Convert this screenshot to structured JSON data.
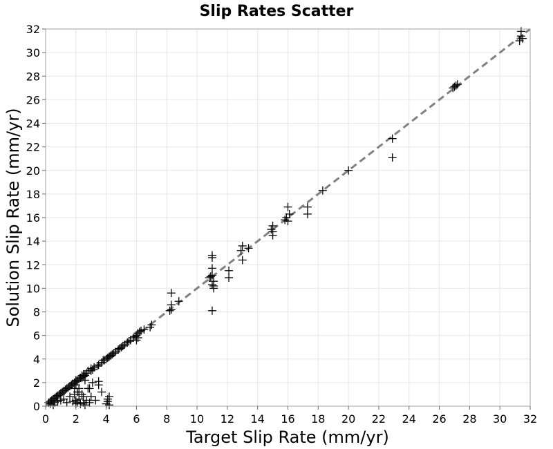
{
  "chart_data": {
    "type": "scatter",
    "title": "Slip Rates Scatter",
    "xlabel": "Target Slip Rate (mm/yr)",
    "ylabel": "Solution Slip Rate (mm/yr)",
    "xlim": [
      0,
      32
    ],
    "ylim": [
      0,
      32
    ],
    "xticks": [
      0,
      2,
      4,
      6,
      8,
      10,
      12,
      14,
      16,
      18,
      20,
      22,
      24,
      26,
      28,
      30,
      32
    ],
    "yticks": [
      0,
      2,
      4,
      6,
      8,
      10,
      12,
      14,
      16,
      18,
      20,
      22,
      24,
      26,
      28,
      30,
      32
    ],
    "grid": true,
    "marker": "plus",
    "colors": {
      "marker": "#000000",
      "reference_line": "#808080",
      "grid": "#e6e6e6"
    },
    "reference_line": {
      "style": "dashed",
      "x": [
        0,
        32
      ],
      "y": [
        0,
        32
      ]
    },
    "series": [
      {
        "x": [
          0.2,
          0.3,
          0.4,
          0.5,
          0.5,
          0.6,
          0.7,
          0.8,
          0.9,
          1.0,
          1.0,
          1.1,
          1.2,
          1.3,
          1.4,
          1.5,
          1.6,
          1.7,
          1.8,
          1.9,
          2.0,
          2.0,
          2.1,
          2.2,
          2.3,
          2.4,
          2.4,
          2.5,
          2.5,
          2.6,
          2.7,
          2.8,
          3.0,
          3.0,
          3.1,
          3.2,
          3.4,
          3.5,
          3.7,
          3.8,
          3.9,
          4.0,
          4.1,
          4.2,
          4.3,
          4.4,
          4.5,
          4.6,
          4.8,
          4.9,
          5.0,
          5.1,
          5.2,
          5.4,
          5.5,
          5.6,
          5.8,
          5.9,
          6.0,
          6.0,
          6.1,
          6.1,
          6.2,
          6.3,
          6.5,
          6.9,
          7.0,
          8.2,
          8.3,
          8.3,
          8.3,
          8.8,
          10.8,
          10.9,
          11.0,
          11.0,
          11.0,
          11.0,
          11.1,
          11.1,
          11.0,
          11.0,
          11.1,
          12.1,
          12.1,
          12.9,
          13.0,
          13.0,
          13.4,
          14.9,
          15.0,
          15.0,
          15.0,
          15.8,
          15.9,
          16.0,
          16.0,
          16.1,
          17.3,
          17.3,
          18.3,
          20.0,
          22.9,
          22.9,
          26.9,
          27.0,
          27.1,
          27.2,
          31.3,
          31.4,
          31.5,
          31.4
        ],
        "y": [
          0.3,
          0.4,
          0.5,
          0.6,
          0.5,
          0.7,
          0.8,
          0.9,
          1.0,
          1.1,
          1.0,
          1.2,
          1.3,
          1.4,
          1.5,
          1.6,
          1.7,
          1.8,
          1.9,
          2.0,
          2.1,
          2.2,
          2.2,
          2.3,
          2.4,
          2.4,
          2.6,
          2.5,
          2.7,
          2.6,
          2.8,
          3.0,
          3.0,
          3.2,
          3.1,
          3.3,
          3.4,
          3.5,
          3.7,
          3.9,
          3.9,
          4.0,
          4.1,
          4.2,
          4.3,
          4.4,
          4.5,
          4.6,
          4.8,
          4.9,
          5.0,
          5.1,
          5.2,
          5.4,
          5.5,
          5.6,
          5.8,
          5.9,
          6.0,
          5.6,
          6.2,
          5.8,
          6.3,
          6.4,
          6.5,
          6.7,
          6.9,
          8.1,
          8.2,
          8.6,
          9.6,
          8.9,
          10.9,
          11.0,
          11.1,
          11.7,
          12.6,
          12.8,
          10.2,
          10.0,
          10.3,
          8.1,
          10.6,
          11.5,
          10.9,
          13.2,
          13.6,
          12.4,
          13.4,
          15.0,
          15.3,
          14.5,
          14.8,
          15.8,
          16.0,
          16.9,
          15.7,
          16.3,
          16.9,
          16.3,
          18.3,
          20.0,
          22.7,
          21.1,
          27.0,
          27.1,
          27.2,
          27.3,
          31.0,
          31.4,
          31.2,
          31.8
        ]
      },
      {
        "x": [
          0.3,
          0.5,
          0.6,
          0.8,
          1.0,
          1.2,
          1.4,
          1.6,
          1.8,
          1.9,
          2.0,
          2.0,
          2.1,
          2.1,
          2.2,
          2.2,
          2.3,
          2.4,
          2.5,
          2.5,
          2.6,
          2.7,
          2.8,
          2.9,
          3.0,
          3.1,
          3.3,
          3.5,
          3.7,
          4.0,
          4.1,
          4.1,
          4.2,
          4.2,
          1.9,
          2.0,
          2.2,
          2.6,
          2.9,
          3.5
        ],
        "y": [
          0.2,
          0.1,
          0.3,
          0.4,
          0.5,
          0.6,
          0.3,
          0.8,
          0.4,
          1.0,
          0.2,
          0.5,
          1.2,
          0.3,
          0.6,
          1.5,
          0.2,
          1.0,
          0.3,
          0.8,
          0.1,
          0.5,
          1.5,
          0.3,
          0.8,
          2.0,
          0.5,
          1.8,
          1.2,
          0.2,
          0.4,
          0.6,
          0.8,
          0.1,
          1.5,
          1.8,
          1.2,
          2.2,
          1.5,
          2.1
        ]
      }
    ]
  }
}
